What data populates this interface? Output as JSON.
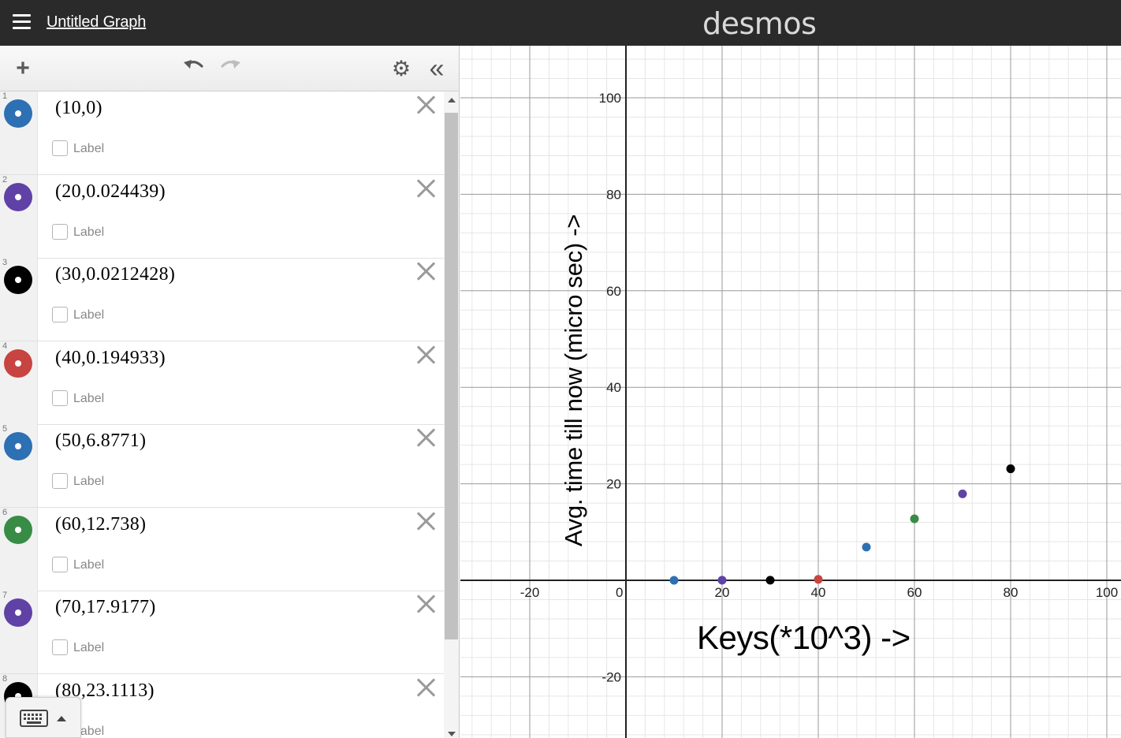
{
  "header": {
    "menu_icon": "hamburger-icon",
    "title": "Untitled Graph",
    "brand": "desmos",
    "background": "#2a2a2a"
  },
  "toolbar": {
    "add_icon": "plus-icon",
    "undo_icon": "undo-icon",
    "redo_icon": "redo-icon",
    "settings_icon": "gear-icon",
    "collapse_icon": "double-chevron-left-icon"
  },
  "expressions": [
    {
      "index": "1",
      "latex": "(10,0)",
      "color": "#2d70b3",
      "label_text": "Label"
    },
    {
      "index": "2",
      "latex": "(20,0.024439)",
      "color": "#6042a6",
      "label_text": "Label"
    },
    {
      "index": "3",
      "latex": "(30,0.0212428)",
      "color": "#000000",
      "label_text": "Label"
    },
    {
      "index": "4",
      "latex": "(40,0.194933)",
      "color": "#c74440",
      "label_text": "Label"
    },
    {
      "index": "5",
      "latex": "(50,6.8771)",
      "color": "#2d70b3",
      "label_text": "Label"
    },
    {
      "index": "6",
      "latex": "(60,12.738)",
      "color": "#388c46",
      "label_text": "Label"
    },
    {
      "index": "7",
      "latex": "(70,17.9177)",
      "color": "#6042a6",
      "label_text": "Label"
    },
    {
      "index": "8",
      "latex": "(80,23.1113)",
      "color": "#000000",
      "label_text": "Label"
    }
  ],
  "keyboard": {
    "icon": "keyboard-icon",
    "toggle_icon": "caret-up-icon"
  },
  "chart_data": {
    "type": "scatter",
    "xlabel": "Keys(*10^3) ->",
    "ylabel": "Avg. time till now (micro sec) ->",
    "xlim": [
      -34,
      103
    ],
    "ylim": [
      -33,
      110
    ],
    "x_ticks": [
      "-20",
      "0",
      "20",
      "40",
      "60",
      "80",
      "100"
    ],
    "y_ticks": [
      "-20",
      "20",
      "40",
      "60",
      "80",
      "100"
    ],
    "grid": true,
    "series": [
      {
        "points": [
          {
            "x": 10,
            "y": 0,
            "color": "#2d70b3"
          },
          {
            "x": 20,
            "y": 0.024439,
            "color": "#6042a6"
          },
          {
            "x": 30,
            "y": 0.0212428,
            "color": "#000000"
          },
          {
            "x": 40,
            "y": 0.194933,
            "color": "#c74440"
          },
          {
            "x": 50,
            "y": 6.8771,
            "color": "#2d70b3"
          },
          {
            "x": 60,
            "y": 12.738,
            "color": "#388c46"
          },
          {
            "x": 70,
            "y": 17.9177,
            "color": "#6042a6"
          },
          {
            "x": 80,
            "y": 23.1113,
            "color": "#000000"
          }
        ]
      }
    ]
  }
}
